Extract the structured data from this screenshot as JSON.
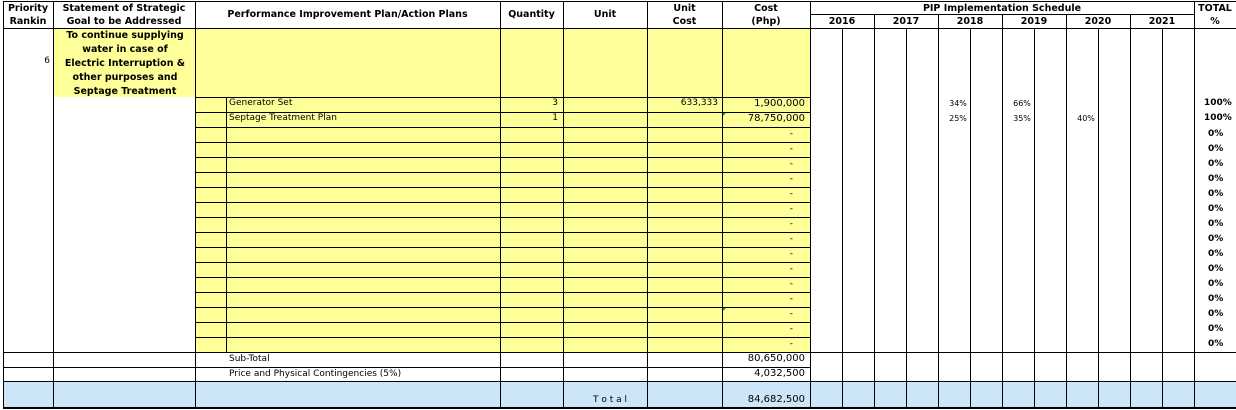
{
  "header": {
    "priority_l1": "Priority",
    "priority_l2": "Rankin",
    "goal_l1": "Statement of Strategic",
    "goal_l2": "Goal to be Addressed",
    "pip": "Performance Improvement Plan/Action Plans",
    "quantity": "Quantity",
    "unit": "Unit",
    "unit_cost_l1": "Unit",
    "unit_cost_l2": "Cost",
    "cost_l1": "Cost",
    "cost_l2": "(Php)",
    "schedule": "PIP Implementation Schedule",
    "years": [
      "2016",
      "2017",
      "2018",
      "2019",
      "2020",
      "2021"
    ],
    "total_l1": "TOTAL",
    "total_l2": "%"
  },
  "goal": {
    "rank": "6",
    "text_lines": [
      "To continue supplying",
      "water in case of",
      "Electric Interruption &",
      "other purposes and",
      "Septage Treatment"
    ]
  },
  "items": [
    {
      "name": "Generator Set",
      "qty": "3",
      "unit_cost": "633,333",
      "cost": "1,900,000",
      "y2016": "",
      "y2017": "",
      "y2018": "34%",
      "y2019": "66%",
      "y2020": "",
      "y2021": "",
      "total": "100%"
    },
    {
      "name": "Septage Treatment Plan",
      "qty": "1",
      "unit_cost": "",
      "cost": "78,750,000",
      "y2016": "",
      "y2017": "",
      "y2018": "25%",
      "y2019": "35%",
      "y2020": "40%",
      "y2021": "",
      "total": "100%"
    }
  ],
  "empty_cost": "-",
  "empty_total": "0%",
  "empty_row_count": 15,
  "subtotal": {
    "label": "Sub-Total",
    "value": "80,650,000"
  },
  "contingency": {
    "label": "Price and Physical Contingencies (5%)",
    "value": "4,032,500"
  },
  "grand_total": {
    "label": "T o t a l",
    "value": "84,682,500"
  }
}
